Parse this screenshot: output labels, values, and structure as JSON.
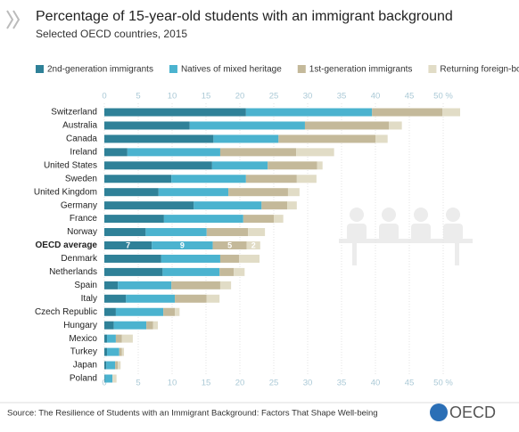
{
  "chart_data": {
    "type": "stacked-bar-horizontal",
    "title": "Percentage of 15-year-old students with an immigrant background",
    "subtitle": "Selected OECD countries, 2015",
    "categories": [
      "Switzerland",
      "Australia",
      "Canada",
      "Ireland",
      "United States",
      "Sweden",
      "United Kingdom",
      "Germany",
      "France",
      "Norway",
      "OECD average",
      "Denmark",
      "Netherlands",
      "Spain",
      "Italy",
      "Czech Republic",
      "Hungary",
      "Mexico",
      "Turkey",
      "Japan",
      "Poland"
    ],
    "highlight_category": "OECD average",
    "series": [
      {
        "name": "2nd-generation immigrants",
        "color": "#2f8198",
        "values": [
          20.9,
          12.6,
          16.1,
          3.4,
          15.9,
          9.9,
          8.0,
          13.2,
          8.8,
          6.1,
          7,
          8.4,
          8.6,
          2.0,
          3.2,
          1.7,
          1.4,
          0.4,
          0.4,
          0.3,
          0.1
        ]
      },
      {
        "name": "Natives of mixed heritage",
        "color": "#4bb3cf",
        "values": [
          18.6,
          17.0,
          9.6,
          13.7,
          8.2,
          11.0,
          10.3,
          10.0,
          11.7,
          9.0,
          9,
          8.7,
          8.4,
          7.9,
          7.2,
          7.0,
          4.8,
          1.3,
          1.8,
          1.3,
          1.1
        ]
      },
      {
        "name": "1st-generation immigrants",
        "color": "#c4b99a",
        "values": [
          10.4,
          12.4,
          14.3,
          11.2,
          7.3,
          7.5,
          8.8,
          3.8,
          4.5,
          6.1,
          5,
          2.8,
          2.1,
          7.2,
          4.7,
          1.7,
          1.0,
          0.9,
          0.4,
          0.4,
          0.0
        ]
      },
      {
        "name": "Returning foreign-borns",
        "color": "#e1dcc6",
        "values": [
          2.6,
          1.9,
          1.8,
          5.6,
          0.8,
          2.9,
          1.7,
          1.4,
          1.4,
          2.5,
          2,
          3.0,
          1.6,
          1.6,
          1.9,
          0.7,
          0.7,
          1.6,
          0.3,
          0.4,
          0.6
        ]
      }
    ],
    "xlim": [
      0,
      50
    ],
    "xticks": [
      0,
      5,
      10,
      15,
      20,
      25,
      30,
      35,
      40,
      45,
      {
        "value": 50,
        "label": "50 %"
      }
    ],
    "grid": true,
    "legend": "top",
    "source": "Source: The Resilience of Students with an Immigrant Background: Factors That Shape Well-being",
    "logo": "OECD"
  }
}
